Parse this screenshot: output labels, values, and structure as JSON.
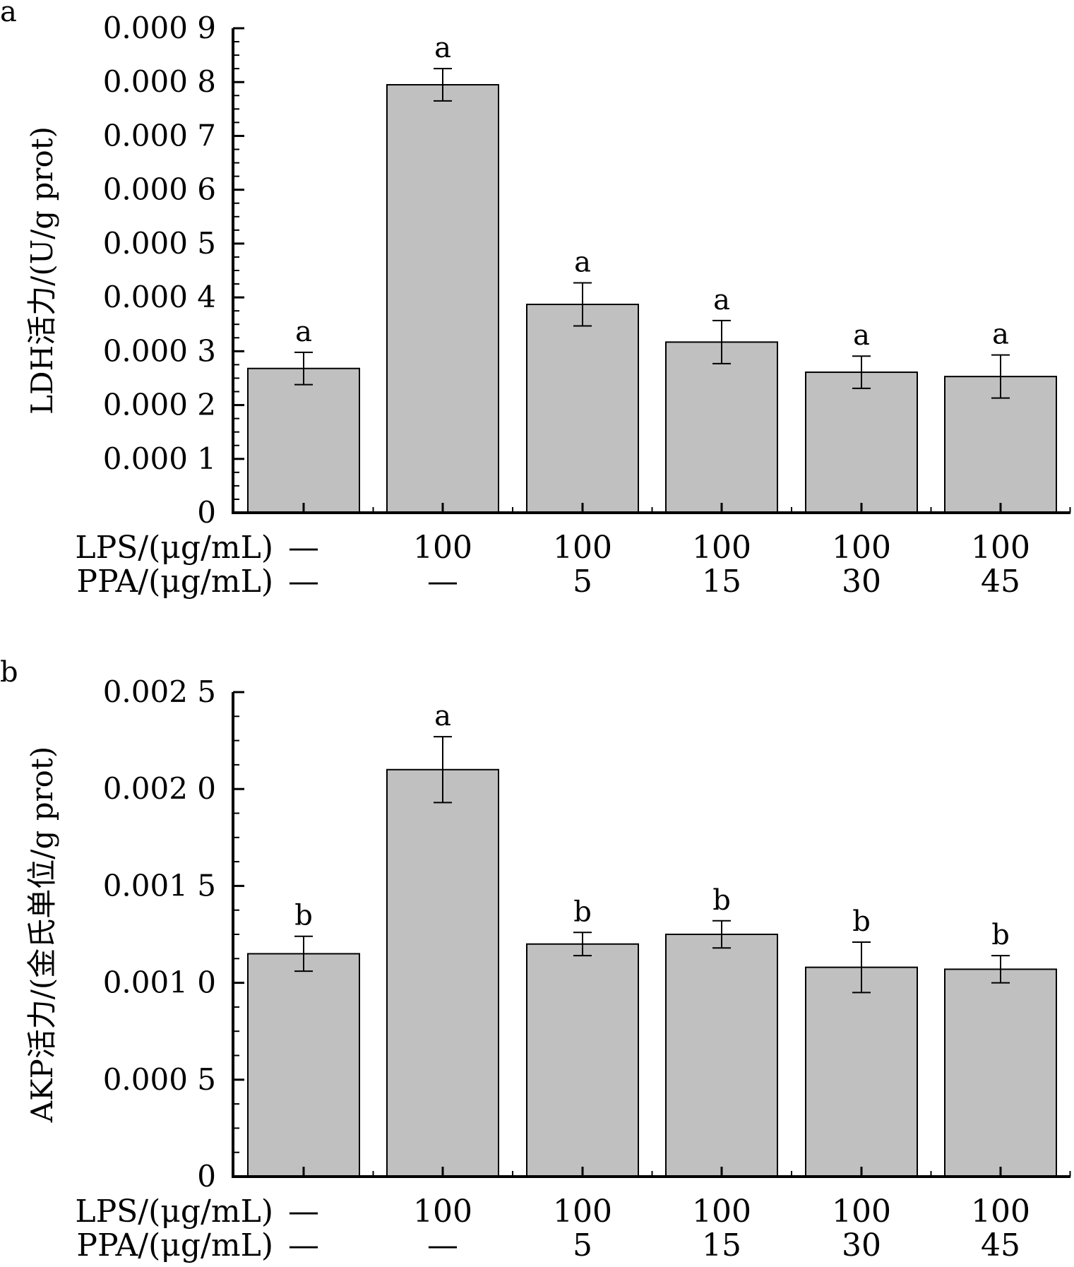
{
  "chart_data": [
    {
      "type": "bar",
      "panel": "a",
      "ylabel": "LDH活力/(U/g prot)",
      "ylim": [
        0,
        0.0009
      ],
      "y_ticks": [
        {
          "value": 0,
          "label": "0"
        },
        {
          "value": 0.0001,
          "label": "0.000 1"
        },
        {
          "value": 0.0002,
          "label": "0.000 2"
        },
        {
          "value": 0.0003,
          "label": "0.000 3"
        },
        {
          "value": 0.0004,
          "label": "0.000 4"
        },
        {
          "value": 0.0005,
          "label": "0.000 5"
        },
        {
          "value": 0.0006,
          "label": "0.000 6"
        },
        {
          "value": 0.0007,
          "label": "0.000 7"
        },
        {
          "value": 0.0008,
          "label": "0.000 8"
        },
        {
          "value": 0.0009,
          "label": "0.000 9"
        }
      ],
      "row_labels": [
        "LPS/(μg/mL)",
        "PPA/(μg/mL)"
      ],
      "lps": [
        "—",
        "100",
        "100",
        "100",
        "100",
        "100"
      ],
      "ppa": [
        "—",
        "—",
        "5",
        "15",
        "30",
        "45"
      ],
      "values": [
        0.000268,
        0.000795,
        0.000387,
        0.000317,
        0.000261,
        0.000253
      ],
      "errors": [
        3e-05,
        3e-05,
        4e-05,
        4e-05,
        3e-05,
        4e-05
      ],
      "significance": [
        "a",
        "a",
        "a",
        "a",
        "a",
        "a"
      ],
      "bar_color": "#c0c0c0",
      "grid": false
    },
    {
      "type": "bar",
      "panel": "b",
      "ylabel": "AKP活力/(金氏单位/g prot)",
      "ylim": [
        0,
        0.0025
      ],
      "y_ticks": [
        {
          "value": 0,
          "label": "0"
        },
        {
          "value": 0.0005,
          "label": "0.000 5"
        },
        {
          "value": 0.001,
          "label": "0.001 0"
        },
        {
          "value": 0.0015,
          "label": "0.001 5"
        },
        {
          "value": 0.002,
          "label": "0.002 0"
        },
        {
          "value": 0.0025,
          "label": "0.002 5"
        }
      ],
      "row_labels": [
        "LPS/(μg/mL)",
        "PPA/(μg/mL)"
      ],
      "lps": [
        "—",
        "100",
        "100",
        "100",
        "100",
        "100"
      ],
      "ppa": [
        "—",
        "—",
        "5",
        "15",
        "30",
        "45"
      ],
      "values": [
        0.00115,
        0.0021,
        0.0012,
        0.00125,
        0.00108,
        0.00107
      ],
      "errors": [
        9e-05,
        0.00017,
        6e-05,
        7e-05,
        0.00013,
        7e-05
      ],
      "significance": [
        "b",
        "a",
        "b",
        "b",
        "b",
        "b"
      ],
      "bar_color": "#c0c0c0",
      "grid": false
    }
  ]
}
